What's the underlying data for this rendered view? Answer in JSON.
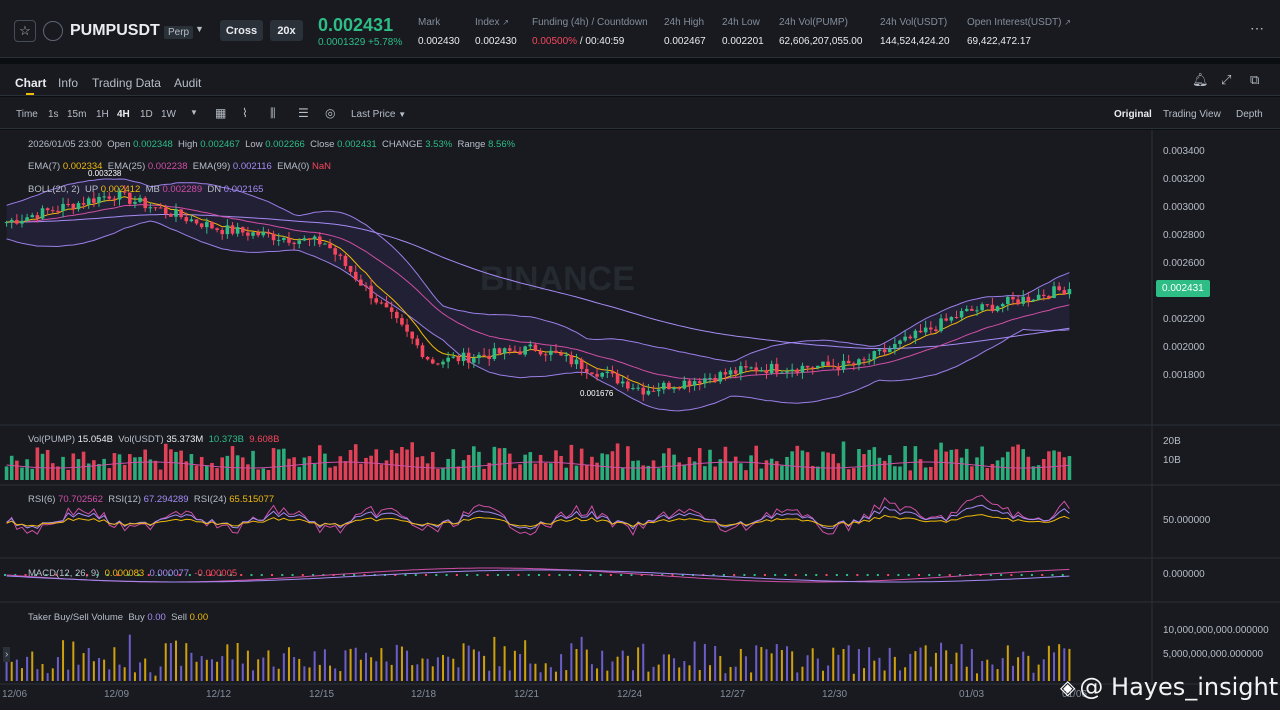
{
  "header": {
    "symbol": "PUMPUSDT",
    "contract_type": "Perp",
    "margin_mode": "Cross",
    "leverage": "20x",
    "last_price": "0.002431",
    "change": "0.0001329 +5.78%",
    "stats": [
      {
        "label": "Mark",
        "value": "0.002430"
      },
      {
        "label": "Index",
        "value": "0.002430"
      },
      {
        "label": "Funding (4h) / Countdown",
        "value": "0.00500%",
        "value2": " / 00:40:59"
      },
      {
        "label": "24h High",
        "value": "0.002467"
      },
      {
        "label": "24h Low",
        "value": "0.002201"
      },
      {
        "label": "24h Vol(PUMP)",
        "value": "62,606,207,055.00"
      },
      {
        "label": "24h Vol(USDT)",
        "value": "144,524,424.20"
      },
      {
        "label": "Open Interest(USDT)",
        "value": "69,422,472.17"
      }
    ]
  },
  "tabs": [
    "Chart",
    "Info",
    "Trading Data",
    "Audit"
  ],
  "toolbar": {
    "intervals": [
      "Time",
      "1s",
      "15m",
      "1H",
      "4H",
      "1D",
      "1W"
    ],
    "active_interval": "4H",
    "price_type": "Last Price",
    "views": [
      "Original",
      "Trading View",
      "Depth"
    ],
    "active_view": "Original"
  },
  "legend": {
    "ohlc": {
      "date": "2026/01/05 23:00",
      "open": "0.002348",
      "high": "0.002467",
      "low": "0.002266",
      "close": "0.002431",
      "change": "3.53%",
      "range": "8.56%"
    },
    "ema": {
      "ema7": "0.002334",
      "ema25": "0.002238",
      "ema99": "0.002116",
      "ema0": "NaN"
    },
    "boll": {
      "label": "BOLL(20, 2)",
      "up": "0.002412",
      "mb": "0.002289",
      "dn": "0.002165"
    },
    "vol": {
      "pump": "15.054B",
      "usdt": "35.373M",
      "v1": "10.373B",
      "v2": "9.608B"
    },
    "rsi": {
      "rsi6": "70.702562",
      "rsi12": "67.294289",
      "rsi24": "65.515077"
    },
    "macd": {
      "label": "MACD(12, 26, 9)",
      "v1": "0.000083",
      "v2": "0.000077",
      "v3": "-0.000005"
    },
    "taker": {
      "label": "Taker Buy/Sell Volume",
      "buy": "0.00",
      "sell": "0.00"
    }
  },
  "price_axis": [
    "0.003400",
    "0.003200",
    "0.003000",
    "0.002800",
    "0.002600",
    "0.002200",
    "0.002000",
    "0.001800"
  ],
  "current_price_tag": "0.002431",
  "vol_axis": [
    "20B",
    "10B"
  ],
  "rsi_axis": "50.000000",
  "macd_axis": "0.000000",
  "taker_axis": [
    "10,000,000,000.000000",
    "5,000,000,000.000000"
  ],
  "x_axis": [
    "12/06",
    "12/09",
    "12/12",
    "12/15",
    "12/18",
    "12/21",
    "12/24",
    "12/27",
    "12/30",
    "01/03",
    "01/06"
  ],
  "annotations": {
    "high": "0.003238",
    "low": "0.001676"
  },
  "watermark": "BINANCE",
  "overlay_credit": "@ Hayes_insight",
  "colors": {
    "up": "#2ebd85",
    "down": "#f6465d",
    "ema7": "#f0b90b",
    "ema25": "#d04fa6",
    "ema99": "#a68bf5",
    "boll": "#9b7fe8"
  },
  "chart_data": {
    "type": "line",
    "title": "",
    "x": [
      "12/06",
      "12/09",
      "12/12",
      "12/15",
      "12/18",
      "12/21",
      "12/24",
      "12/27",
      "12/30",
      "01/03",
      "01/06"
    ],
    "series": [
      {
        "values": [
          0.0029,
          0.0031,
          0.00285,
          0.00275,
          0.0019,
          0.002,
          0.0017,
          0.00185,
          0.00188,
          0.00225,
          0.00243
        ]
      }
    ],
    "ylim": [
      0.0016,
      0.0035
    ]
  }
}
